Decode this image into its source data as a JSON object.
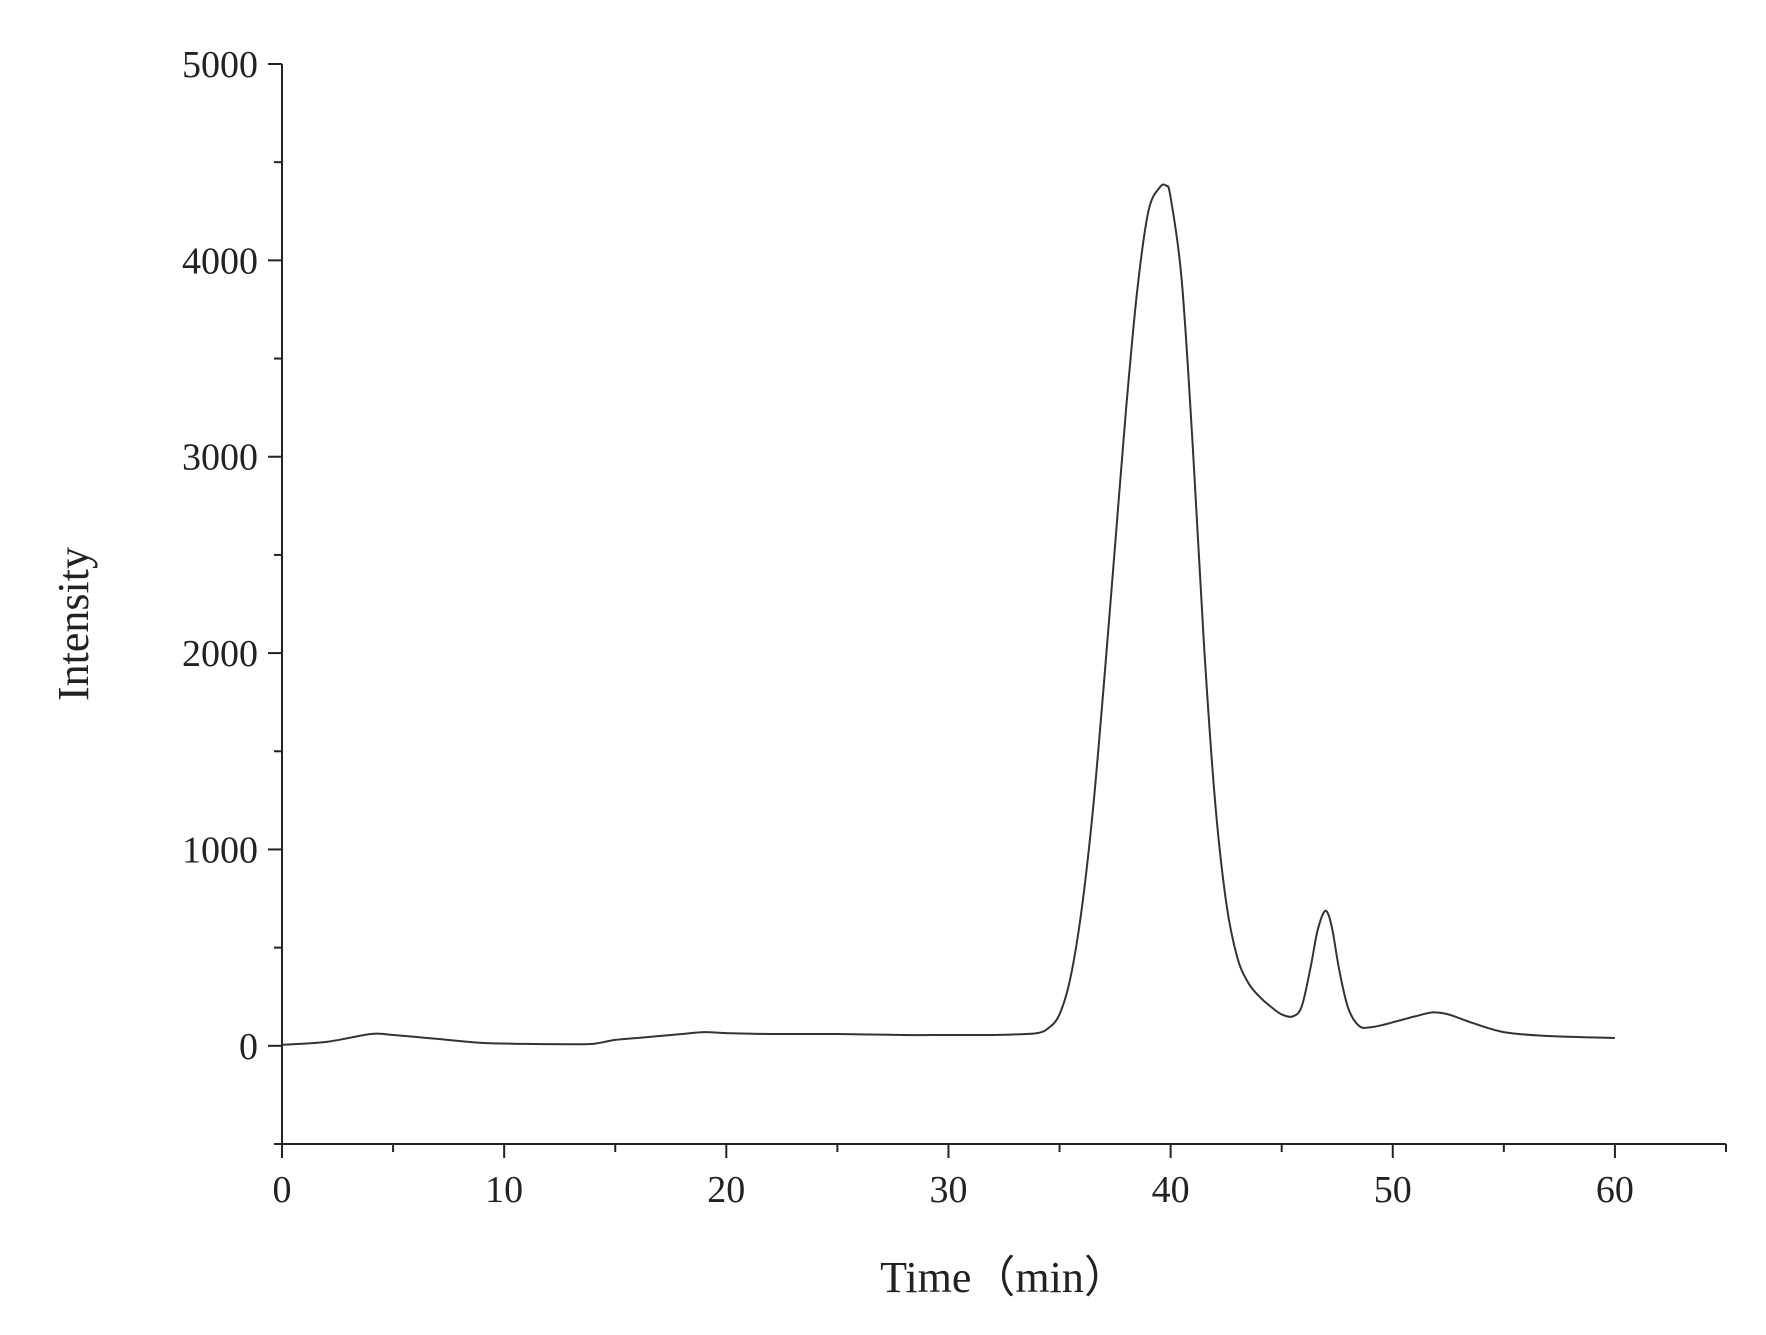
{
  "chart_data": {
    "type": "line",
    "title": "",
    "xlabel": "Time（min）",
    "ylabel": "Intensity",
    "xlim": [
      0,
      65
    ],
    "ylim": [
      -500,
      5000
    ],
    "x_ticks": [
      0,
      10,
      20,
      30,
      40,
      50,
      60
    ],
    "x_tick_labels": [
      "0",
      "10",
      "20",
      "30",
      "40",
      "50",
      "60"
    ],
    "y_ticks": [
      0,
      1000,
      2000,
      3000,
      4000,
      5000
    ],
    "y_tick_labels": [
      "0",
      "1000",
      "2000",
      "3000",
      "4000",
      "5000"
    ],
    "grid": false,
    "legend": "none",
    "line_color": "#333333",
    "series": [
      {
        "x": [
          0,
          2,
          4,
          5,
          7,
          9,
          11,
          13,
          14,
          15,
          16,
          17,
          18,
          19,
          20,
          22,
          25,
          28,
          30,
          32,
          33,
          34,
          34.5,
          35,
          35.5,
          36,
          36.5,
          37,
          37.5,
          38,
          38.5,
          39,
          39.5,
          39.8,
          40,
          40.5,
          41,
          41.5,
          42,
          42.5,
          43,
          43.5,
          44,
          44.5,
          45,
          45.5,
          45.9,
          46.3,
          46.6,
          46.9,
          47.1,
          47.3,
          47.6,
          48,
          48.5,
          49,
          49.5,
          50,
          51,
          51.8,
          52.5,
          53.5,
          55,
          57,
          60
        ],
        "y": [
          5,
          20,
          60,
          55,
          35,
          15,
          10,
          8,
          10,
          30,
          40,
          50,
          60,
          70,
          65,
          60,
          60,
          55,
          55,
          55,
          58,
          65,
          90,
          160,
          350,
          700,
          1200,
          1850,
          2550,
          3250,
          3850,
          4250,
          4370,
          4380,
          4320,
          3900,
          3050,
          2050,
          1250,
          730,
          450,
          320,
          250,
          200,
          160,
          150,
          200,
          400,
          580,
          680,
          670,
          580,
          380,
          190,
          100,
          95,
          105,
          120,
          150,
          170,
          160,
          120,
          70,
          50,
          40
        ]
      }
    ]
  }
}
